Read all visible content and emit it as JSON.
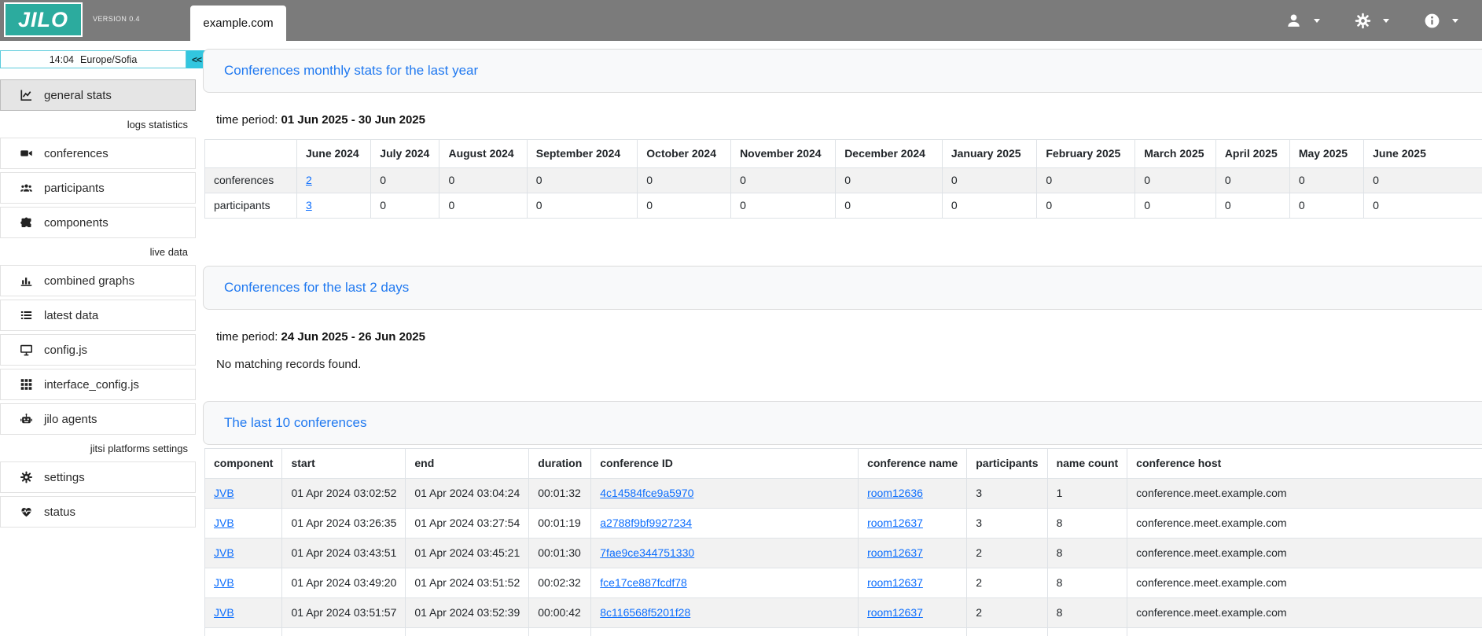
{
  "theme": {
    "topbar_gray": "#7b7b7b",
    "logo_teal": "#2cab9e",
    "collapse_cyan": "#32c6df",
    "link_blue": "#0d6efd",
    "card_title_blue": "#2079f0",
    "stripe_gray": "#f2f2f2"
  },
  "header": {
    "logo_text": "JILO",
    "version": "VERSION 0.4",
    "tab_label": "example.com",
    "menu_icons": [
      "user-icon",
      "gear-icon",
      "info-icon"
    ]
  },
  "sidebar": {
    "time": "14:04",
    "timezone": "Europe/Sofia",
    "collapse_button": "<<",
    "sections": [
      {
        "label": "",
        "items": [
          {
            "icon": "chart-line-icon",
            "label": "general stats",
            "active": true
          }
        ]
      },
      {
        "label": "logs statistics",
        "items": [
          {
            "icon": "video-camera-icon",
            "label": "conferences"
          },
          {
            "icon": "users-icon",
            "label": "participants"
          },
          {
            "icon": "puzzle-piece-icon",
            "label": "components"
          }
        ]
      },
      {
        "label": "live data",
        "items": [
          {
            "icon": "bar-chart-icon",
            "label": "combined graphs"
          },
          {
            "icon": "list-icon",
            "label": "latest data"
          },
          {
            "icon": "monitor-icon",
            "label": "config.js"
          },
          {
            "icon": "grid-icon",
            "label": "interface_config.js"
          },
          {
            "icon": "robot-icon",
            "label": "jilo agents"
          }
        ]
      },
      {
        "label": "jitsi platforms settings",
        "items": [
          {
            "icon": "gear-icon",
            "label": "settings"
          },
          {
            "icon": "heart-pulse-icon",
            "label": "status"
          }
        ]
      }
    ]
  },
  "main": {
    "monthly_card": {
      "title": "Conferences monthly stats for the last year",
      "time_period_label": "time period:",
      "time_period_value": "01 Jun 2025 - 30 Jun 2025"
    },
    "monthly_table": {
      "columns": [
        "",
        "June 2024",
        "July 2024",
        "August 2024",
        "September 2024",
        "October 2024",
        "November 2024",
        "December 2024",
        "January 2025",
        "February 2025",
        "March 2025",
        "April 2025",
        "May 2025",
        "June 2025"
      ],
      "rows": [
        {
          "label": "conferences",
          "values": [
            "2",
            "0",
            "0",
            "0",
            "0",
            "0",
            "0",
            "0",
            "0",
            "0",
            "0",
            "0",
            "0"
          ],
          "link_indices": [
            0
          ]
        },
        {
          "label": "participants",
          "values": [
            "3",
            "0",
            "0",
            "0",
            "0",
            "0",
            "0",
            "0",
            "0",
            "0",
            "0",
            "0",
            "0"
          ],
          "link_indices": [
            0
          ]
        }
      ]
    },
    "last2days_card": {
      "title": "Conferences for the last 2 days",
      "time_period_label": "time period:",
      "time_period_value": "24 Jun 2025 - 26 Jun 2025",
      "empty_message": "No matching records found."
    },
    "last10_card": {
      "title": "The last 10 conferences"
    },
    "last10_table": {
      "columns": [
        "component",
        "start",
        "end",
        "duration",
        "conference ID",
        "conference name",
        "participants",
        "name count",
        "conference host"
      ],
      "link_columns": [
        0,
        4,
        5
      ],
      "partial_next_row_visible": true,
      "rows": [
        [
          "JVB",
          "01 Apr 2024 03:02:52",
          "01 Apr 2024 03:04:24",
          "00:01:32",
          "4c14584fce9a5970",
          "room12636",
          "3",
          "1",
          "conference.meet.example.com"
        ],
        [
          "JVB",
          "01 Apr 2024 03:26:35",
          "01 Apr 2024 03:27:54",
          "00:01:19",
          "a2788f9bf9927234",
          "room12637",
          "3",
          "8",
          "conference.meet.example.com"
        ],
        [
          "JVB",
          "01 Apr 2024 03:43:51",
          "01 Apr 2024 03:45:21",
          "00:01:30",
          "7fae9ce344751330",
          "room12637",
          "2",
          "8",
          "conference.meet.example.com"
        ],
        [
          "JVB",
          "01 Apr 2024 03:49:20",
          "01 Apr 2024 03:51:52",
          "00:02:32",
          "fce17ce887fcdf78",
          "room12637",
          "2",
          "8",
          "conference.meet.example.com"
        ],
        [
          "JVB",
          "01 Apr 2024 03:51:57",
          "01 Apr 2024 03:52:39",
          "00:00:42",
          "8c116568f5201f28",
          "room12637",
          "2",
          "8",
          "conference.meet.example.com"
        ]
      ]
    }
  }
}
